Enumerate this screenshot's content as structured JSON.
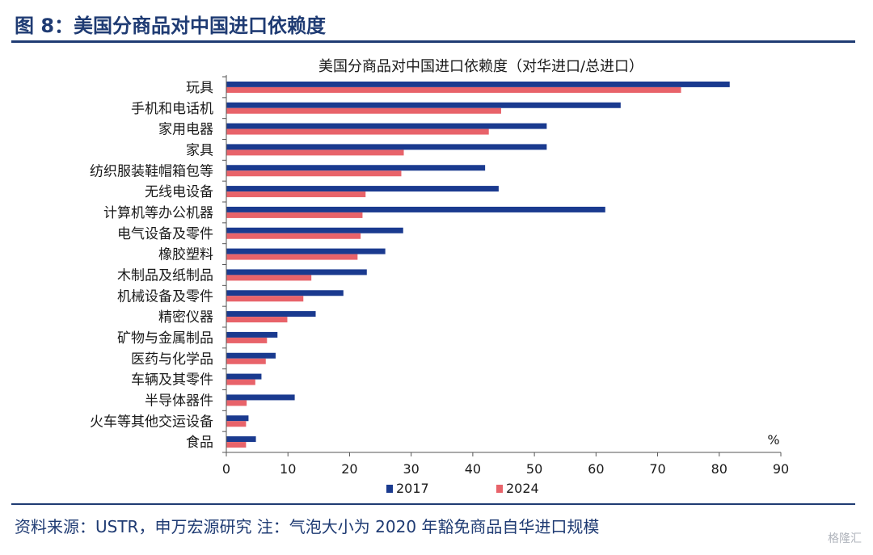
{
  "figure_title": "图 8：美国分商品对中国进口依赖度",
  "source_note": "资料来源：USTR，申万宏源研究 注：气泡大小为 2020 年豁免商品自华进口规模",
  "watermark": "格隆汇",
  "chart_data": {
    "type": "bar",
    "orientation": "horizontal",
    "title": "美国分商品对中国进口依赖度（对华进口/总进口）",
    "unit_label": "%",
    "xlim": [
      0,
      90
    ],
    "xticks": [
      0,
      10,
      20,
      30,
      40,
      50,
      60,
      70,
      80,
      90
    ],
    "grid": false,
    "legend_position": "bottom",
    "categories": [
      "玩具",
      "手机和电话机",
      "家用电器",
      "家具",
      "纺织服装鞋帽箱包等",
      "无线电设备",
      "计算机等办公机器",
      "电气设备及零件",
      "橡胶塑料",
      "木制品及纸制品",
      "机械设备及零件",
      "精密仪器",
      "矿物与金属制品",
      "医药与化学品",
      "车辆及其零件",
      "半导体器件",
      "火车等其他交运设备",
      "食品"
    ],
    "series": [
      {
        "name": "2017",
        "color": "#1a3a8f",
        "values": [
          81.7,
          64.0,
          52.0,
          52.0,
          42.0,
          44.2,
          61.5,
          28.7,
          25.8,
          22.8,
          19.0,
          14.5,
          8.3,
          8.0,
          5.7,
          11.1,
          3.6,
          4.8
        ]
      },
      {
        "name": "2024",
        "color": "#e8636a",
        "values": [
          73.8,
          44.6,
          42.6,
          28.8,
          28.4,
          22.6,
          22.1,
          21.8,
          21.3,
          13.8,
          12.5,
          9.9,
          6.6,
          6.4,
          4.7,
          3.3,
          3.2,
          3.2
        ]
      }
    ]
  }
}
